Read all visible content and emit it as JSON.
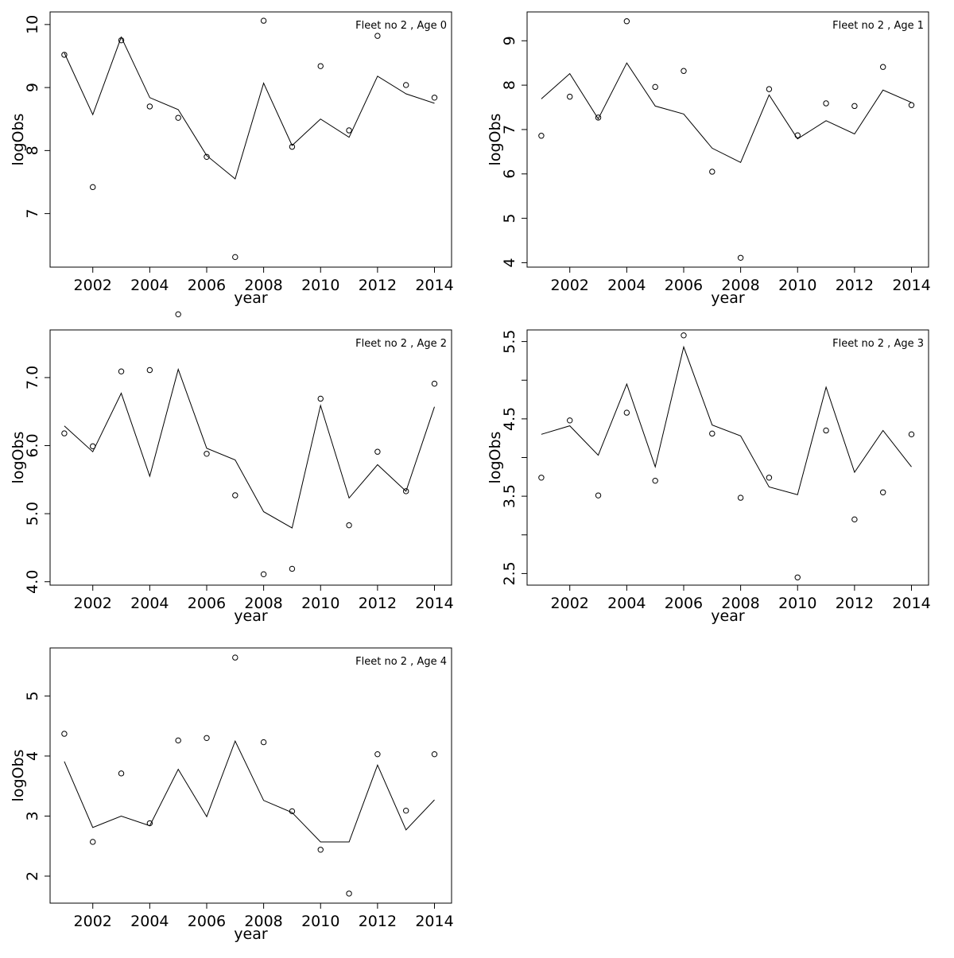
{
  "chart_data": [
    {
      "type": "line",
      "title": "Fleet no 2 , Age 0",
      "xlabel": "year",
      "ylabel": "logObs",
      "xlim": [
        2000.5,
        2014.6
      ],
      "ylim": [
        6.15,
        10.2
      ],
      "xticks": [
        2002,
        2004,
        2006,
        2008,
        2010,
        2012,
        2014
      ],
      "yticks": [
        7,
        8,
        9,
        10
      ],
      "ytick_labels": [
        "7",
        "8",
        "9",
        "10"
      ],
      "series": [
        {
          "kind": "line",
          "x": [
            2001,
            2002,
            2003,
            2004,
            2005,
            2006,
            2007,
            2008,
            2009,
            2010,
            2011,
            2012,
            2013,
            2014
          ],
          "values": [
            9.55,
            8.57,
            9.8,
            8.84,
            8.65,
            7.92,
            7.55,
            9.07,
            8.08,
            8.5,
            8.21,
            9.18,
            8.9,
            8.75
          ]
        },
        {
          "kind": "points",
          "x": [
            2001,
            2002,
            2003,
            2004,
            2005,
            2006,
            2007,
            2008,
            2009,
            2010,
            2011,
            2012,
            2013,
            2014
          ],
          "values": [
            9.52,
            7.42,
            9.75,
            8.7,
            8.52,
            7.9,
            6.31,
            10.06,
            8.06,
            9.34,
            8.32,
            9.82,
            9.04,
            8.84
          ]
        }
      ]
    },
    {
      "type": "line",
      "title": "Fleet no 2 , Age 1",
      "xlabel": "year",
      "ylabel": "logObs",
      "xlim": [
        2000.5,
        2014.6
      ],
      "ylim": [
        3.9,
        9.65
      ],
      "xticks": [
        2002,
        2004,
        2006,
        2008,
        2010,
        2012,
        2014
      ],
      "yticks": [
        4,
        5,
        6,
        7,
        8,
        9
      ],
      "ytick_labels": [
        "4",
        "5",
        "6",
        "7",
        "8",
        "9"
      ],
      "series": [
        {
          "kind": "line",
          "x": [
            2001,
            2002,
            2003,
            2004,
            2005,
            2006,
            2007,
            2008,
            2009,
            2010,
            2011,
            2012,
            2013,
            2014
          ],
          "values": [
            7.69,
            8.26,
            7.24,
            8.5,
            7.53,
            7.35,
            6.58,
            6.26,
            7.78,
            6.79,
            7.2,
            6.9,
            7.89,
            7.61
          ]
        },
        {
          "kind": "points",
          "x": [
            2001,
            2002,
            2003,
            2004,
            2005,
            2006,
            2007,
            2008,
            2009,
            2010,
            2011,
            2012,
            2013,
            2014
          ],
          "values": [
            6.86,
            7.74,
            7.27,
            9.44,
            7.96,
            8.32,
            6.05,
            4.11,
            7.91,
            6.87,
            7.59,
            7.53,
            8.41,
            7.55
          ]
        }
      ]
    },
    {
      "type": "line",
      "title": "Fleet no 2 , Age 2",
      "xlabel": "year",
      "ylabel": "logObs",
      "xlim": [
        2000.5,
        2014.6
      ],
      "ylim": [
        3.95,
        7.7
      ],
      "xticks": [
        2002,
        2004,
        2006,
        2008,
        2010,
        2012,
        2014
      ],
      "yticks": [
        4.0,
        5.0,
        6.0,
        7.0
      ],
      "ytick_labels": [
        "4.0",
        "5.0",
        "6.0",
        "7.0"
      ],
      "series": [
        {
          "kind": "line",
          "x": [
            2001,
            2002,
            2003,
            2004,
            2005,
            2006,
            2007,
            2008,
            2009,
            2010,
            2011,
            2012,
            2013,
            2014
          ],
          "values": [
            6.29,
            5.91,
            6.77,
            5.55,
            7.12,
            5.96,
            5.79,
            5.03,
            4.79,
            6.59,
            5.23,
            5.72,
            5.33,
            6.57
          ]
        },
        {
          "kind": "points",
          "x": [
            2001,
            2002,
            2003,
            2004,
            2005,
            2006,
            2007,
            2008,
            2009,
            2010,
            2011,
            2012,
            2013,
            2014
          ],
          "values": [
            6.18,
            5.99,
            7.09,
            7.11,
            7.93,
            5.88,
            5.27,
            4.11,
            4.19,
            6.69,
            4.83,
            5.91,
            5.33,
            6.91
          ]
        }
      ]
    },
    {
      "type": "line",
      "title": "Fleet no 2 , Age 3",
      "xlabel": "year",
      "ylabel": "logObs",
      "xlim": [
        2000.5,
        2014.6
      ],
      "ylim": [
        2.35,
        5.65
      ],
      "xticks": [
        2002,
        2004,
        2006,
        2008,
        2010,
        2012,
        2014
      ],
      "yticks": [
        2.5,
        3.0,
        3.5,
        4.0,
        4.5,
        5.0,
        5.5
      ],
      "ytick_labels": [
        "2.5",
        "",
        "3.5",
        "",
        "4.5",
        "",
        "5.5"
      ],
      "series": [
        {
          "kind": "line",
          "x": [
            2001,
            2002,
            2003,
            2004,
            2005,
            2006,
            2007,
            2008,
            2009,
            2010,
            2011,
            2012,
            2013,
            2014
          ],
          "values": [
            4.3,
            4.41,
            4.03,
            4.95,
            3.88,
            5.43,
            4.42,
            4.28,
            3.62,
            3.52,
            4.91,
            3.81,
            4.35,
            3.88
          ]
        },
        {
          "kind": "points",
          "x": [
            2001,
            2002,
            2003,
            2004,
            2005,
            2006,
            2007,
            2008,
            2009,
            2010,
            2011,
            2012,
            2013,
            2014
          ],
          "values": [
            3.74,
            4.48,
            3.51,
            4.58,
            3.7,
            5.58,
            4.31,
            3.48,
            3.74,
            2.45,
            4.35,
            3.2,
            3.55,
            4.3
          ]
        }
      ]
    },
    {
      "type": "line",
      "title": "Fleet no 2 , Age 4",
      "xlabel": "year",
      "ylabel": "logObs",
      "xlim": [
        2000.5,
        2014.6
      ],
      "ylim": [
        1.55,
        5.8
      ],
      "xticks": [
        2002,
        2004,
        2006,
        2008,
        2010,
        2012,
        2014
      ],
      "yticks": [
        2,
        3,
        4,
        5
      ],
      "ytick_labels": [
        "2",
        "3",
        "4",
        "5"
      ],
      "series": [
        {
          "kind": "line",
          "x": [
            2001,
            2002,
            2003,
            2004,
            2005,
            2006,
            2007,
            2008,
            2009,
            2010,
            2011,
            2012,
            2013,
            2014
          ],
          "values": [
            3.91,
            2.81,
            3.0,
            2.84,
            3.78,
            2.99,
            4.25,
            3.26,
            3.06,
            2.57,
            2.57,
            3.85,
            2.77,
            3.27
          ]
        },
        {
          "kind": "points",
          "x": [
            2001,
            2002,
            2003,
            2004,
            2005,
            2006,
            2007,
            2008,
            2009,
            2010,
            2011,
            2012,
            2013,
            2014
          ],
          "values": [
            4.37,
            2.57,
            3.71,
            2.88,
            4.26,
            4.3,
            5.64,
            4.23,
            3.08,
            2.44,
            1.71,
            4.03,
            3.09,
            4.03
          ]
        }
      ]
    }
  ]
}
